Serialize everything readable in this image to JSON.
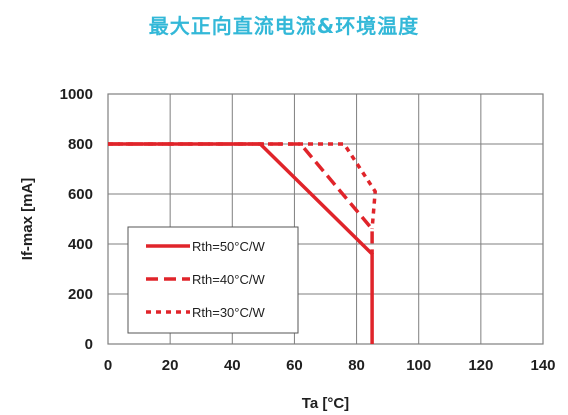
{
  "page": {
    "title": "最大正向直流电流&环境温度"
  },
  "colors": {
    "series": "#e0242a",
    "grid": "#7f7f7f",
    "frame": "#7f7f7f",
    "title": "#33b8d8"
  },
  "chart_data": {
    "type": "line",
    "title": "",
    "xlabel": "Ta [°C]",
    "ylabel": "If-max [mA]",
    "xlim": [
      0,
      140
    ],
    "ylim": [
      0,
      1000
    ],
    "xticks": [
      0,
      20,
      40,
      60,
      80,
      100,
      120,
      140
    ],
    "yticks": [
      0,
      200,
      400,
      600,
      800,
      1000
    ],
    "grid": true,
    "legend_placement": "bottom-left",
    "series": [
      {
        "name": "Rth=50°C/W",
        "dash": "solid",
        "x": [
          0,
          49,
          85,
          85
        ],
        "y": [
          800,
          800,
          360,
          0
        ]
      },
      {
        "name": "Rth=40°C/W",
        "dash": "dashed",
        "x": [
          0,
          62,
          85,
          85
        ],
        "y": [
          800,
          800,
          460,
          360
        ]
      },
      {
        "name": "Rth=30°C/W",
        "dash": "dotted",
        "x": [
          0,
          76,
          86,
          85
        ],
        "y": [
          800,
          800,
          610,
          460
        ]
      }
    ]
  }
}
